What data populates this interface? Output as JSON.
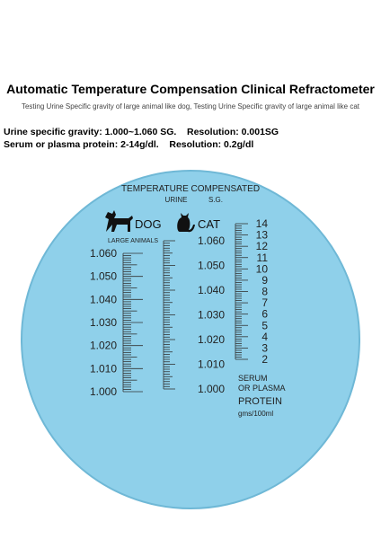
{
  "header": {
    "title": "Automatic Temperature Compensation Clinical Refractometer",
    "subtitle": "Testing Urine Specific gravity of large animal like dog,  Testing Urine Specific gravity of large animal like cat",
    "specs": [
      "Urine specific gravity: 1.000~1.060 SG.    Resolution: 0.001SG",
      "Serum or plasma protein: 2-14g/dl.    Resolution: 0.2g/dl"
    ]
  },
  "scale": {
    "heading": "TEMPERATURE COMPENSATED",
    "urine": "URINE",
    "sg": "S.G.",
    "dog": {
      "label": "DOG",
      "note": "LARGE ANIMALS",
      "marks": [
        "1.060",
        "1.050",
        "1.040",
        "1.030",
        "1.020",
        "1.010",
        "1.000"
      ]
    },
    "cat": {
      "label": "CAT",
      "marks": [
        "1.060",
        "1.050",
        "1.040",
        "1.030",
        "1.020",
        "1.010",
        "1.000"
      ]
    },
    "protein": {
      "marks": [
        "14",
        "13",
        "12",
        "11",
        "10",
        "9",
        "8",
        "7",
        "6",
        "5",
        "4",
        "3",
        "2"
      ],
      "line1": "SERUM",
      "line2": "OR PLASMA",
      "line3": "PROTEIN",
      "unit": "gms/100ml"
    }
  }
}
